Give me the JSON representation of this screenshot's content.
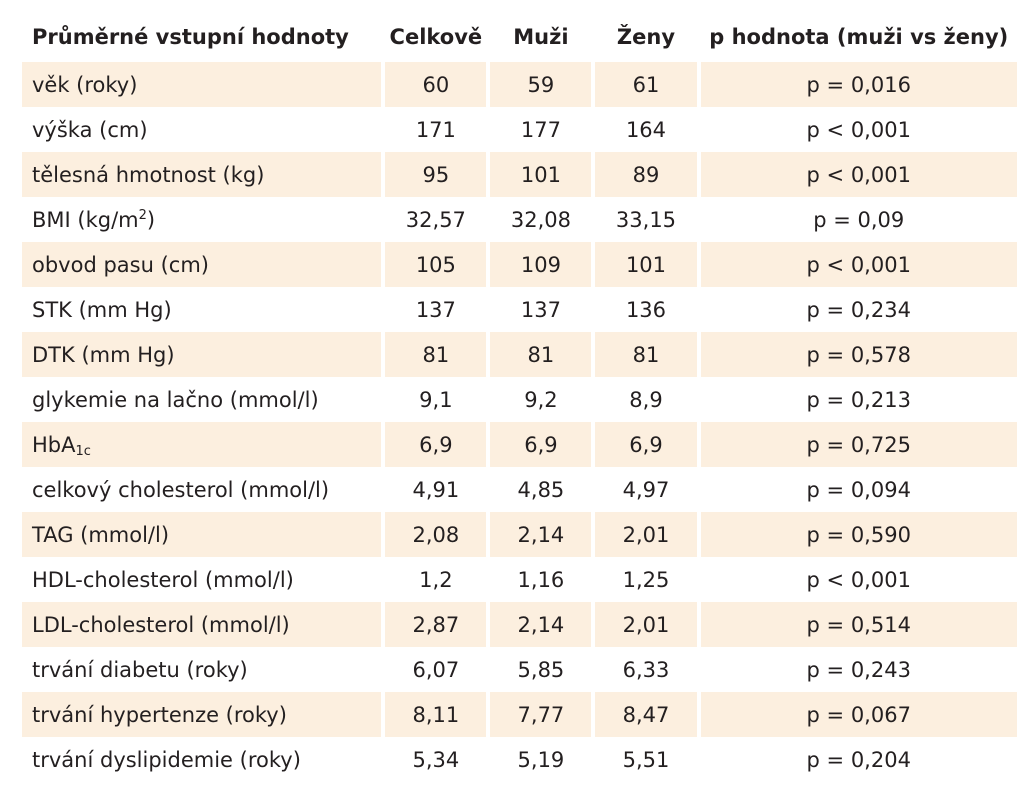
{
  "table": {
    "headers": [
      "Průměrné vstupní hodnoty",
      "Celkově",
      "Muži",
      "Ženy",
      "p hodnota (muži vs ženy)"
    ],
    "rows": [
      {
        "label": "věk (roky)",
        "label_suffix": "",
        "celkove": "60",
        "muzi": "59",
        "zeny": "61",
        "p": "p = 0,016"
      },
      {
        "label": "výška (cm)",
        "label_suffix": "",
        "celkove": "171",
        "muzi": "177",
        "zeny": "164",
        "p": "p < 0,001"
      },
      {
        "label": "tělesná hmotnost (kg)",
        "label_suffix": "",
        "celkove": "95",
        "muzi": "101",
        "zeny": "89",
        "p": "p < 0,001"
      },
      {
        "label": "BMI (kg/m",
        "label_sup": "2",
        "label_suffix": ")",
        "celkove": "32,57",
        "muzi": "32,08",
        "zeny": "33,15",
        "p": "p = 0,09"
      },
      {
        "label": "obvod pasu (cm)",
        "label_suffix": "",
        "celkove": "105",
        "muzi": "109",
        "zeny": "101",
        "p": "p < 0,001"
      },
      {
        "label": "STK (mm Hg)",
        "label_suffix": "",
        "celkove": "137",
        "muzi": "137",
        "zeny": "136",
        "p": "p = 0,234"
      },
      {
        "label": "DTK (mm Hg)",
        "label_suffix": "",
        "celkove": "81",
        "muzi": "81",
        "zeny": "81",
        "p": "p = 0,578"
      },
      {
        "label": "glykemie na lačno (mmol/l)",
        "label_suffix": "",
        "celkove": "9,1",
        "muzi": "9,2",
        "zeny": "8,9",
        "p": "p = 0,213"
      },
      {
        "label": "HbA",
        "label_sub": "1c",
        "label_suffix": "",
        "celkove": "6,9",
        "muzi": "6,9",
        "zeny": "6,9",
        "p": "p = 0,725"
      },
      {
        "label": "celkový cholesterol (mmol/l)",
        "label_suffix": "",
        "celkove": "4,91",
        "muzi": "4,85",
        "zeny": "4,97",
        "p": "p = 0,094"
      },
      {
        "label": "TAG (mmol/l)",
        "label_suffix": "",
        "celkove": "2,08",
        "muzi": "2,14",
        "zeny": "2,01",
        "p": "p = 0,590"
      },
      {
        "label": "HDL-cholesterol (mmol/l)",
        "label_suffix": "",
        "celkove": "1,2",
        "muzi": "1,16",
        "zeny": "1,25",
        "p": "p < 0,001"
      },
      {
        "label": "LDL-cholesterol (mmol/l)",
        "label_suffix": "",
        "celkove": "2,87",
        "muzi": "2,14",
        "zeny": "2,01",
        "p": "p = 0,514"
      },
      {
        "label": "trvání diabetu (roky)",
        "label_suffix": "",
        "celkove": "6,07",
        "muzi": "5,85",
        "zeny": "6,33",
        "p": "p = 0,243"
      },
      {
        "label": "trvání hypertenze (roky)",
        "label_suffix": "",
        "celkove": "8,11",
        "muzi": "7,77",
        "zeny": "8,47",
        "p": "p = 0,067"
      },
      {
        "label": "trvání dyslipidemie (roky)",
        "label_suffix": "",
        "celkove": "5,34",
        "muzi": "5,19",
        "zeny": "5,51",
        "p": "p = 0,204"
      }
    ]
  },
  "colors": {
    "shade": "#fcefdf",
    "text": "#231f20"
  }
}
